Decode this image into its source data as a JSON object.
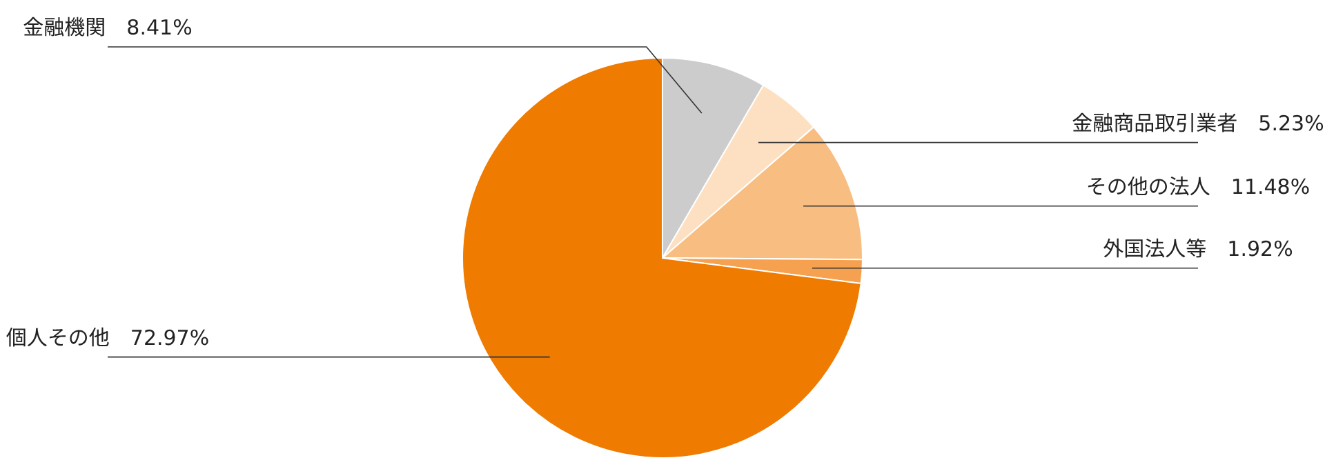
{
  "chart_data": {
    "type": "pie",
    "categories": [
      "金融機関",
      "金融商品取引業者",
      "その他の法人",
      "外国法人等",
      "個人その他"
    ],
    "values": [
      8.41,
      5.23,
      11.48,
      1.92,
      72.97
    ],
    "value_labels": [
      "8.41%",
      "5.23%",
      "11.48%",
      "1.92%",
      "72.97%"
    ],
    "colors": [
      "#cccccc",
      "#fde0c2",
      "#f8bd80",
      "#f5a150",
      "#ef7b00"
    ]
  }
}
